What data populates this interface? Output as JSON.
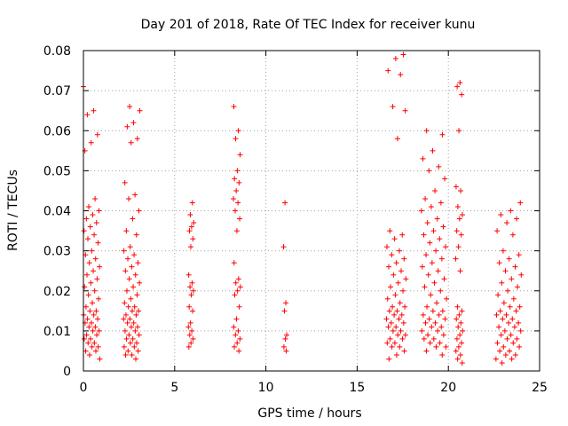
{
  "chart_data": {
    "type": "scatter",
    "title": "Day 201 of 2018, Rate Of TEC Index for receiver kunu",
    "xlabel": "GPS time / hours",
    "ylabel": "ROTI / TECUs",
    "xlim": [
      0,
      25
    ],
    "ylim": [
      0,
      0.08
    ],
    "x_ticks": [
      0,
      5,
      10,
      15,
      20,
      25
    ],
    "x_tick_labels": [
      "0",
      "5",
      "10",
      "15",
      "20",
      "25"
    ],
    "y_ticks": [
      0,
      0.01,
      0.02,
      0.03,
      0.04,
      0.05,
      0.06,
      0.07,
      0.08
    ],
    "y_tick_labels": [
      "0",
      "0.01",
      "0.02",
      "0.03",
      "0.04",
      "0.05",
      "0.06",
      "0.07",
      "0.08"
    ],
    "grid": true,
    "marker": "+",
    "color": "#ff0000",
    "series": [
      {
        "name": "ROTI",
        "clusters": [
          {
            "x_range": [
              0.0,
              0.9
            ],
            "values": [
              0.071,
              0.065,
              0.064,
              0.059,
              0.057,
              0.055,
              0.043,
              0.041,
              0.04,
              0.039,
              0.038,
              0.037,
              0.036,
              0.035,
              0.034,
              0.033,
              0.032,
              0.03,
              0.029,
              0.028,
              0.027,
              0.026,
              0.025,
              0.024,
              0.023,
              0.022,
              0.021,
              0.02,
              0.019,
              0.018,
              0.017,
              0.016,
              0.015,
              0.015,
              0.014,
              0.014,
              0.013,
              0.013,
              0.012,
              0.012,
              0.011,
              0.011,
              0.01,
              0.01,
              0.009,
              0.009,
              0.008,
              0.008,
              0.007,
              0.007,
              0.006,
              0.006,
              0.005,
              0.005,
              0.004,
              0.003
            ]
          },
          {
            "x_range": [
              2.2,
              3.1
            ],
            "values": [
              0.066,
              0.065,
              0.062,
              0.061,
              0.058,
              0.057,
              0.047,
              0.044,
              0.043,
              0.04,
              0.038,
              0.035,
              0.034,
              0.031,
              0.03,
              0.029,
              0.028,
              0.027,
              0.026,
              0.025,
              0.024,
              0.023,
              0.022,
              0.021,
              0.02,
              0.019,
              0.018,
              0.017,
              0.016,
              0.016,
              0.015,
              0.015,
              0.014,
              0.014,
              0.013,
              0.013,
              0.012,
              0.012,
              0.011,
              0.011,
              0.01,
              0.01,
              0.009,
              0.009,
              0.008,
              0.008,
              0.007,
              0.007,
              0.006,
              0.006,
              0.005,
              0.005,
              0.004,
              0.004,
              0.003
            ]
          },
          {
            "x_range": [
              5.75,
              6.05
            ],
            "values": [
              0.042,
              0.039,
              0.037,
              0.036,
              0.035,
              0.033,
              0.031,
              0.024,
              0.022,
              0.021,
              0.02,
              0.019,
              0.016,
              0.015,
              0.012,
              0.011,
              0.01,
              0.009,
              0.008,
              0.007,
              0.006
            ]
          },
          {
            "x_range": [
              8.2,
              8.6
            ],
            "values": [
              0.066,
              0.06,
              0.058,
              0.054,
              0.05,
              0.048,
              0.047,
              0.045,
              0.043,
              0.042,
              0.04,
              0.038,
              0.035,
              0.027,
              0.023,
              0.022,
              0.021,
              0.02,
              0.019,
              0.016,
              0.013,
              0.011,
              0.01,
              0.009,
              0.008,
              0.007,
              0.006,
              0.005
            ]
          },
          {
            "x_range": [
              10.95,
              11.15
            ],
            "values": [
              0.042,
              0.031,
              0.017,
              0.015,
              0.009,
              0.008,
              0.006,
              0.005
            ]
          },
          {
            "x_range": [
              16.6,
              17.7
            ],
            "values": [
              0.079,
              0.078,
              0.075,
              0.074,
              0.066,
              0.065,
              0.058,
              0.035,
              0.034,
              0.033,
              0.031,
              0.03,
              0.029,
              0.028,
              0.027,
              0.026,
              0.025,
              0.024,
              0.023,
              0.022,
              0.021,
              0.02,
              0.019,
              0.018,
              0.017,
              0.016,
              0.016,
              0.015,
              0.015,
              0.014,
              0.014,
              0.013,
              0.013,
              0.012,
              0.012,
              0.011,
              0.011,
              0.01,
              0.01,
              0.009,
              0.009,
              0.008,
              0.008,
              0.007,
              0.007,
              0.006,
              0.006,
              0.005,
              0.004,
              0.003
            ]
          },
          {
            "x_range": [
              18.5,
              19.9
            ],
            "values": [
              0.06,
              0.059,
              0.055,
              0.053,
              0.051,
              0.05,
              0.048,
              0.045,
              0.043,
              0.042,
              0.041,
              0.04,
              0.038,
              0.037,
              0.036,
              0.035,
              0.034,
              0.033,
              0.032,
              0.031,
              0.03,
              0.029,
              0.028,
              0.027,
              0.026,
              0.025,
              0.024,
              0.023,
              0.022,
              0.021,
              0.02,
              0.019,
              0.018,
              0.017,
              0.016,
              0.015,
              0.015,
              0.014,
              0.014,
              0.013,
              0.013,
              0.012,
              0.012,
              0.011,
              0.011,
              0.01,
              0.01,
              0.009,
              0.009,
              0.008,
              0.008,
              0.007,
              0.007,
              0.006,
              0.006,
              0.005,
              0.004
            ]
          },
          {
            "x_range": [
              20.4,
              20.8
            ],
            "values": [
              0.072,
              0.071,
              0.069,
              0.06,
              0.046,
              0.045,
              0.041,
              0.039,
              0.038,
              0.035,
              0.034,
              0.031,
              0.028,
              0.025,
              0.016,
              0.015,
              0.014,
              0.013,
              0.012,
              0.011,
              0.01,
              0.009,
              0.008,
              0.007,
              0.006,
              0.005,
              0.004,
              0.003,
              0.002
            ]
          },
          {
            "x_range": [
              22.6,
              24.0
            ],
            "values": [
              0.042,
              0.04,
              0.039,
              0.038,
              0.037,
              0.035,
              0.034,
              0.03,
              0.029,
              0.028,
              0.027,
              0.026,
              0.025,
              0.024,
              0.023,
              0.022,
              0.021,
              0.02,
              0.019,
              0.018,
              0.017,
              0.016,
              0.016,
              0.015,
              0.015,
              0.014,
              0.014,
              0.013,
              0.013,
              0.012,
              0.012,
              0.011,
              0.011,
              0.01,
              0.01,
              0.009,
              0.009,
              0.008,
              0.008,
              0.007,
              0.007,
              0.006,
              0.006,
              0.005,
              0.005,
              0.004,
              0.004,
              0.003,
              0.003,
              0.002
            ]
          }
        ]
      }
    ]
  }
}
